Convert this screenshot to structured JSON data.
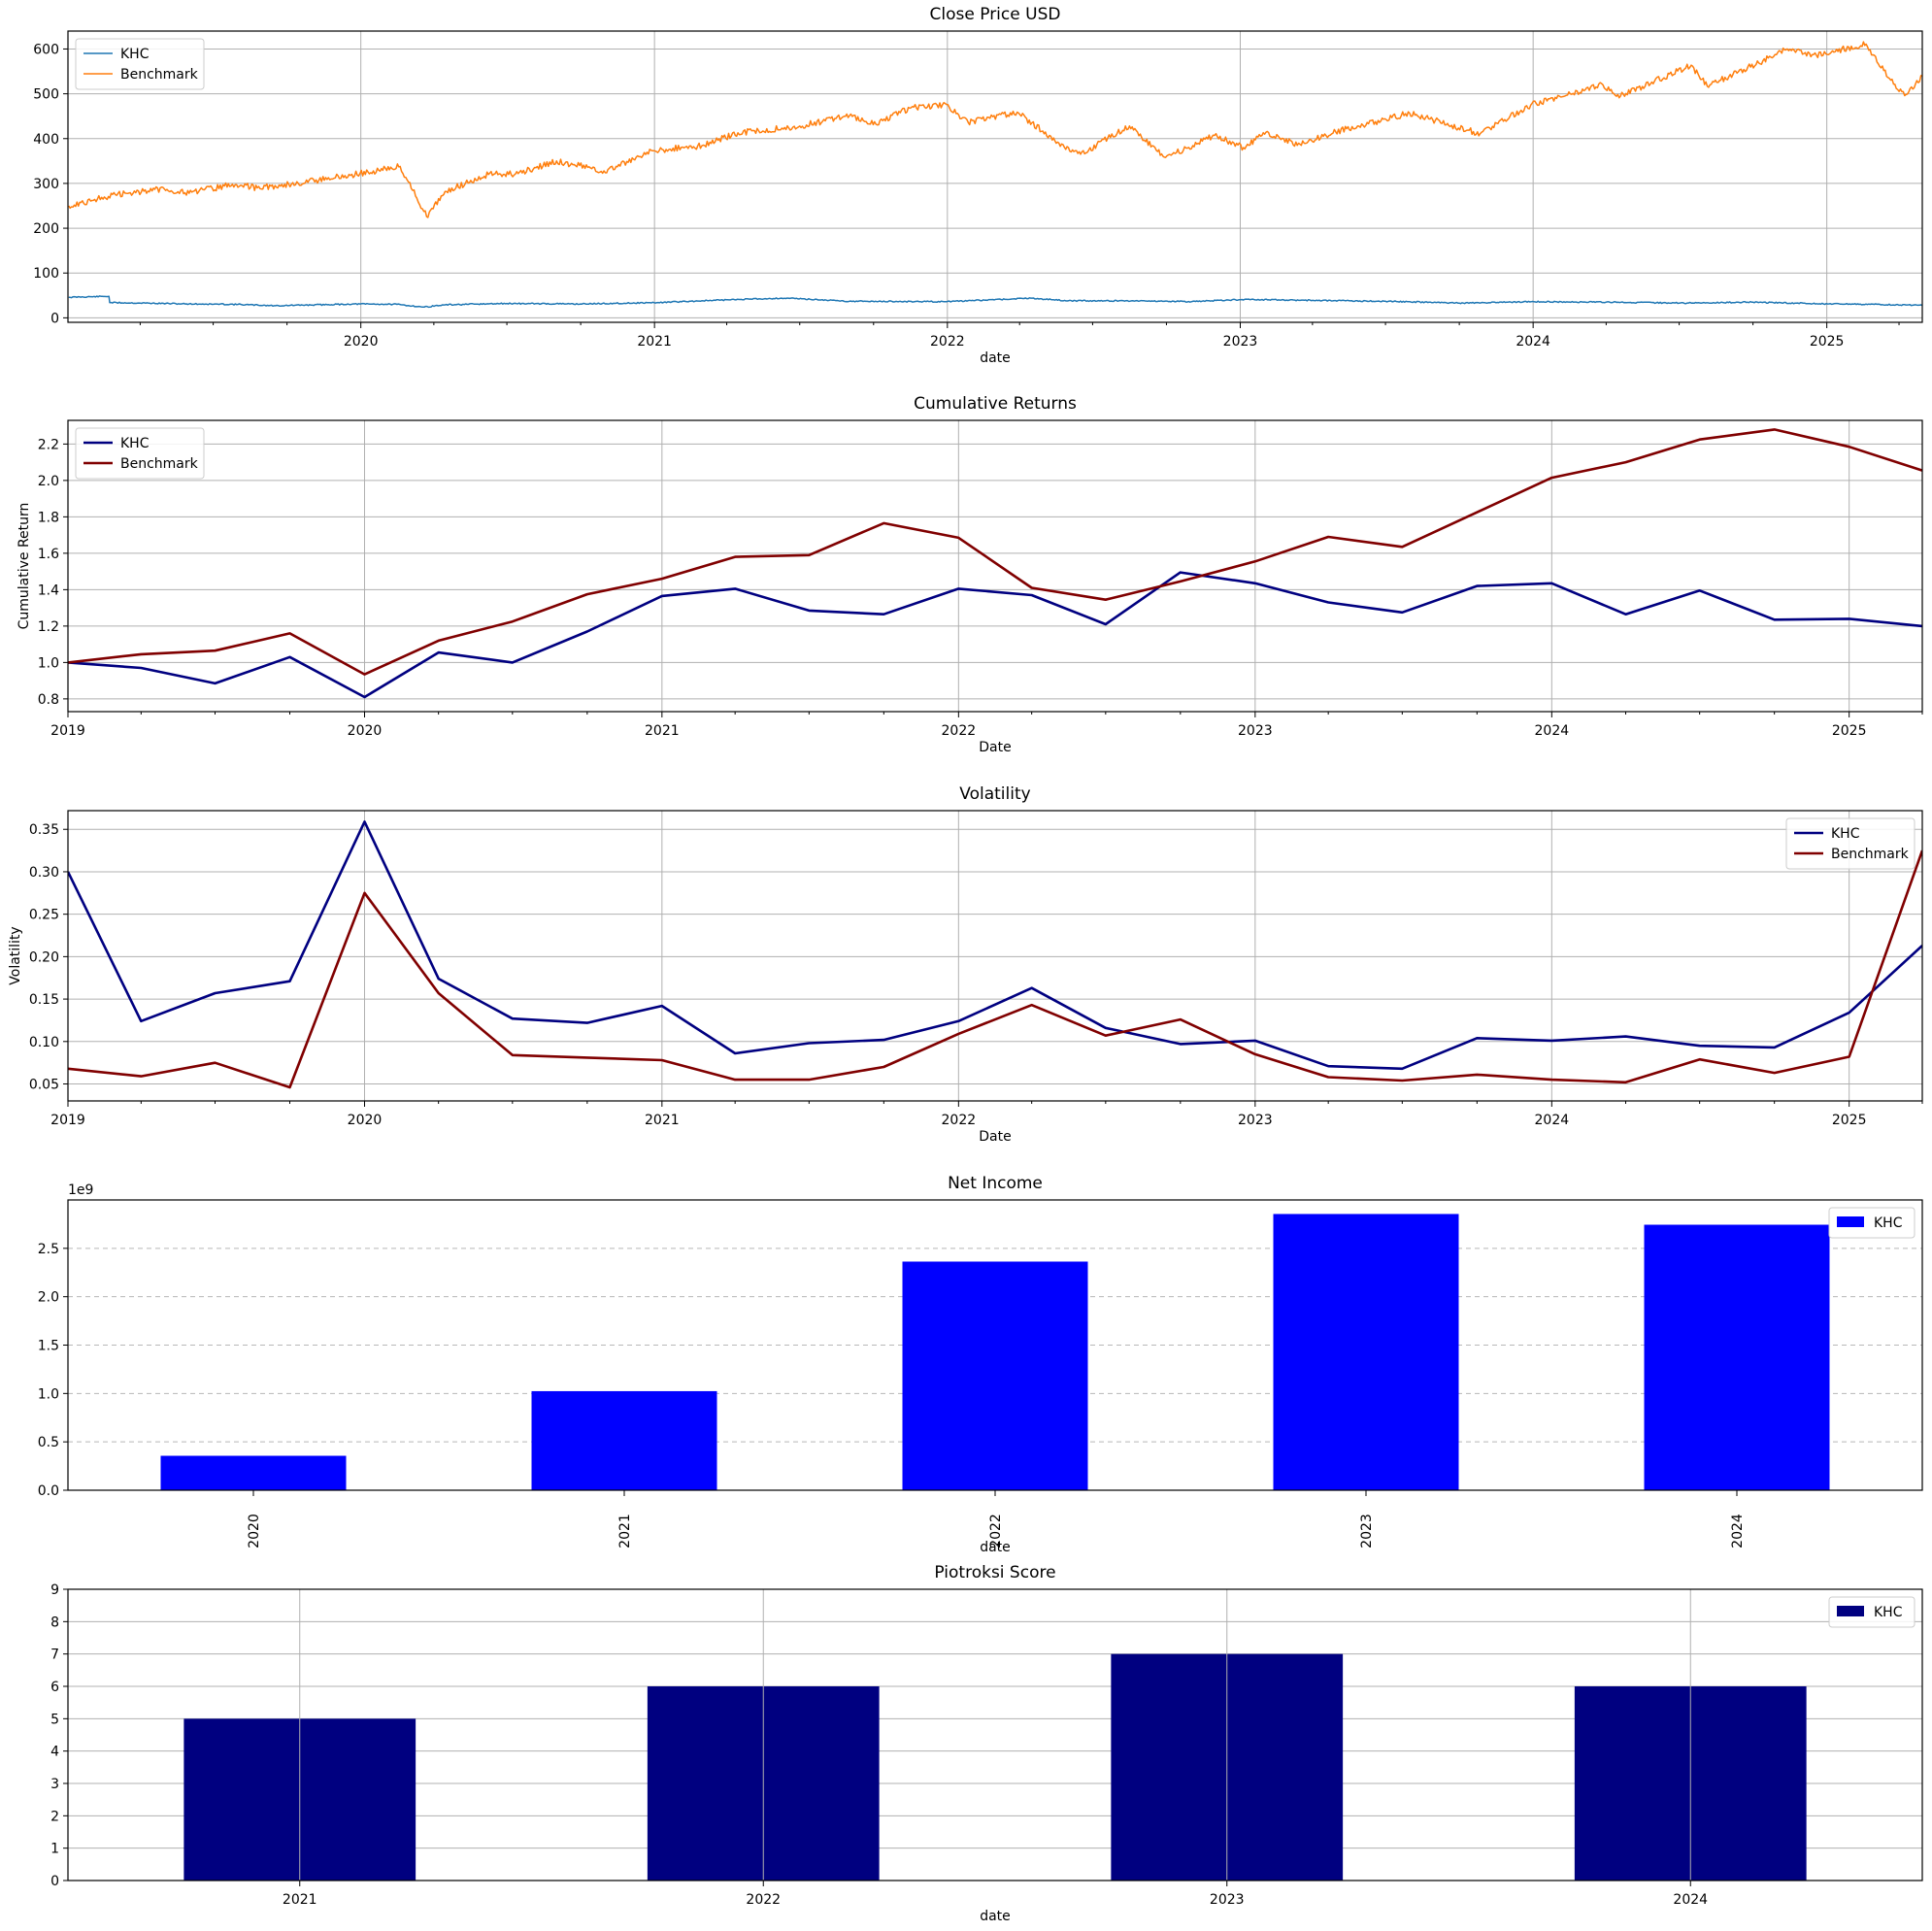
{
  "chart_data": [
    {
      "type": "line",
      "title": "Close Price USD",
      "xlabel": "date",
      "ylabel": "",
      "x_range": [
        "2019-01-01",
        "2025-04-30"
      ],
      "ylim": [
        -10,
        640
      ],
      "x_ticks": [
        "2020",
        "2021",
        "2022",
        "2023",
        "2024",
        "2025"
      ],
      "y_ticks": [
        "0",
        "100",
        "200",
        "300",
        "400",
        "500",
        "600"
      ],
      "grid": true,
      "legend": "top-left",
      "series": [
        {
          "name": "KHC",
          "color": "#1f77b4",
          "points": [
            [
              "2019-01-02",
              46
            ],
            [
              "2019-02-21",
              48
            ],
            [
              "2019-02-22",
              34
            ],
            [
              "2019-04-01",
              33
            ],
            [
              "2019-06-01",
              31
            ],
            [
              "2019-08-01",
              30
            ],
            [
              "2019-09-15",
              27
            ],
            [
              "2019-12-31",
              31
            ],
            [
              "2020-02-15",
              30
            ],
            [
              "2020-03-20",
              24
            ],
            [
              "2020-04-15",
              29
            ],
            [
              "2020-07-01",
              32
            ],
            [
              "2020-10-01",
              31
            ],
            [
              "2021-01-04",
              34
            ],
            [
              "2021-03-01",
              38
            ],
            [
              "2021-05-01",
              42
            ],
            [
              "2021-06-15",
              44
            ],
            [
              "2021-09-01",
              37
            ],
            [
              "2021-12-31",
              36
            ],
            [
              "2022-04-15",
              44
            ],
            [
              "2022-06-01",
              38
            ],
            [
              "2022-09-01",
              38
            ],
            [
              "2022-11-01",
              36
            ],
            [
              "2023-01-03",
              41
            ],
            [
              "2023-04-01",
              39
            ],
            [
              "2023-07-01",
              37
            ],
            [
              "2023-10-01",
              33
            ],
            [
              "2024-01-02",
              36
            ],
            [
              "2024-04-01",
              35
            ],
            [
              "2024-07-01",
              33
            ],
            [
              "2024-10-01",
              35
            ],
            [
              "2025-01-02",
              31
            ],
            [
              "2025-03-01",
              30
            ],
            [
              "2025-04-30",
              28
            ]
          ]
        },
        {
          "name": "Benchmark",
          "color": "#ff7f0e",
          "points": [
            [
              "2019-01-02",
              250
            ],
            [
              "2019-03-01",
              275
            ],
            [
              "2019-05-01",
              288
            ],
            [
              "2019-06-01",
              278
            ],
            [
              "2019-07-25",
              298
            ],
            [
              "2019-08-25",
              290
            ],
            [
              "2019-10-15",
              300
            ],
            [
              "2019-12-31",
              322
            ],
            [
              "2020-02-19",
              338
            ],
            [
              "2020-03-23",
              226
            ],
            [
              "2020-04-15",
              282
            ],
            [
              "2020-06-08",
              320
            ],
            [
              "2020-07-15",
              322
            ],
            [
              "2020-09-01",
              350
            ],
            [
              "2020-10-30",
              328
            ],
            [
              "2020-12-31",
              373
            ],
            [
              "2021-03-01",
              384
            ],
            [
              "2021-04-15",
              413
            ],
            [
              "2021-07-01",
              428
            ],
            [
              "2021-09-01",
              451
            ],
            [
              "2021-10-04",
              432
            ],
            [
              "2021-11-15",
              468
            ],
            [
              "2021-12-31",
              476
            ],
            [
              "2022-01-27",
              436
            ],
            [
              "2022-03-29",
              459
            ],
            [
              "2022-05-20",
              390
            ],
            [
              "2022-06-16",
              365
            ],
            [
              "2022-08-16",
              428
            ],
            [
              "2022-09-30",
              358
            ],
            [
              "2022-11-30",
              407
            ],
            [
              "2023-01-05",
              380
            ],
            [
              "2023-02-02",
              414
            ],
            [
              "2023-03-13",
              385
            ],
            [
              "2023-04-30",
              415
            ],
            [
              "2023-07-31",
              457
            ],
            [
              "2023-10-27",
              411
            ],
            [
              "2023-12-29",
              475
            ],
            [
              "2024-03-28",
              520
            ],
            [
              "2024-04-19",
              495
            ],
            [
              "2024-07-16",
              564
            ],
            [
              "2024-08-05",
              517
            ],
            [
              "2024-11-11",
              598
            ],
            [
              "2024-12-19",
              586
            ],
            [
              "2025-02-19",
              611
            ],
            [
              "2025-03-13",
              552
            ],
            [
              "2025-04-08",
              496
            ],
            [
              "2025-04-30",
              540
            ]
          ]
        }
      ]
    },
    {
      "type": "line",
      "title": "Cumulative Returns",
      "xlabel": "Date",
      "ylabel": "Cumulative Return",
      "x_range": [
        "2019-01-01",
        "2025-04-01"
      ],
      "ylim": [
        0.73,
        2.33
      ],
      "x_ticks": [
        "2019",
        "2020",
        "2021",
        "2022",
        "2023",
        "2024",
        "2025"
      ],
      "y_ticks": [
        "0.8",
        "1.0",
        "1.2",
        "1.4",
        "1.6",
        "1.8",
        "2.0",
        "2.2"
      ],
      "grid": true,
      "legend": "top-left",
      "series": [
        {
          "name": "KHC",
          "color": "#000080",
          "points": [
            [
              "2019-01-01",
              1.0
            ],
            [
              "2019-04-01",
              0.97
            ],
            [
              "2019-07-01",
              0.885
            ],
            [
              "2019-10-01",
              1.03
            ],
            [
              "2020-01-01",
              0.81
            ],
            [
              "2020-04-01",
              1.055
            ],
            [
              "2020-07-01",
              1.0
            ],
            [
              "2020-10-01",
              1.17
            ],
            [
              "2021-01-01",
              1.365
            ],
            [
              "2021-04-01",
              1.405
            ],
            [
              "2021-07-01",
              1.285
            ],
            [
              "2021-10-01",
              1.265
            ],
            [
              "2022-01-01",
              1.405
            ],
            [
              "2022-04-01",
              1.37
            ],
            [
              "2022-07-01",
              1.21
            ],
            [
              "2022-10-01",
              1.495
            ],
            [
              "2023-01-01",
              1.435
            ],
            [
              "2023-04-01",
              1.33
            ],
            [
              "2023-07-01",
              1.275
            ],
            [
              "2023-10-01",
              1.42
            ],
            [
              "2024-01-01",
              1.435
            ],
            [
              "2024-04-01",
              1.265
            ],
            [
              "2024-07-01",
              1.395
            ],
            [
              "2024-10-01",
              1.235
            ],
            [
              "2025-01-01",
              1.24
            ],
            [
              "2025-04-01",
              1.2
            ]
          ]
        },
        {
          "name": "Benchmark",
          "color": "#800000",
          "points": [
            [
              "2019-01-01",
              1.0
            ],
            [
              "2019-04-01",
              1.045
            ],
            [
              "2019-07-01",
              1.065
            ],
            [
              "2019-10-01",
              1.16
            ],
            [
              "2020-01-01",
              0.935
            ],
            [
              "2020-04-01",
              1.12
            ],
            [
              "2020-07-01",
              1.225
            ],
            [
              "2020-10-01",
              1.375
            ],
            [
              "2021-01-01",
              1.46
            ],
            [
              "2021-04-01",
              1.58
            ],
            [
              "2021-07-01",
              1.59
            ],
            [
              "2021-10-01",
              1.765
            ],
            [
              "2022-01-01",
              1.685
            ],
            [
              "2022-04-01",
              1.41
            ],
            [
              "2022-07-01",
              1.345
            ],
            [
              "2022-10-01",
              1.445
            ],
            [
              "2023-01-01",
              1.555
            ],
            [
              "2023-04-01",
              1.69
            ],
            [
              "2023-07-01",
              1.635
            ],
            [
              "2023-10-01",
              1.825
            ],
            [
              "2024-01-01",
              2.015
            ],
            [
              "2024-04-01",
              2.1
            ],
            [
              "2024-07-01",
              2.225
            ],
            [
              "2024-10-01",
              2.28
            ],
            [
              "2025-01-01",
              2.185
            ],
            [
              "2025-04-01",
              2.055
            ]
          ]
        }
      ]
    },
    {
      "type": "line",
      "title": "Volatility",
      "xlabel": "Date",
      "ylabel": "Volatility",
      "x_range": [
        "2019-01-01",
        "2025-04-01"
      ],
      "ylim": [
        0.03,
        0.372
      ],
      "x_ticks": [
        "2019",
        "2020",
        "2021",
        "2022",
        "2023",
        "2024",
        "2025"
      ],
      "y_ticks": [
        "0.05",
        "0.10",
        "0.15",
        "0.20",
        "0.25",
        "0.30",
        "0.35"
      ],
      "grid": true,
      "legend": "top-right",
      "series": [
        {
          "name": "KHC",
          "color": "#000080",
          "points": [
            [
              "2019-01-01",
              0.3
            ],
            [
              "2019-04-01",
              0.124
            ],
            [
              "2019-07-01",
              0.157
            ],
            [
              "2019-10-01",
              0.171
            ],
            [
              "2020-01-01",
              0.359
            ],
            [
              "2020-04-01",
              0.174
            ],
            [
              "2020-07-01",
              0.127
            ],
            [
              "2020-10-01",
              0.122
            ],
            [
              "2021-01-01",
              0.142
            ],
            [
              "2021-04-01",
              0.086
            ],
            [
              "2021-07-01",
              0.098
            ],
            [
              "2021-10-01",
              0.102
            ],
            [
              "2022-01-01",
              0.124
            ],
            [
              "2022-04-01",
              0.163
            ],
            [
              "2022-07-01",
              0.116
            ],
            [
              "2022-10-01",
              0.097
            ],
            [
              "2023-01-01",
              0.101
            ],
            [
              "2023-04-01",
              0.071
            ],
            [
              "2023-07-01",
              0.068
            ],
            [
              "2023-10-01",
              0.104
            ],
            [
              "2024-01-01",
              0.101
            ],
            [
              "2024-04-01",
              0.106
            ],
            [
              "2024-07-01",
              0.095
            ],
            [
              "2024-10-01",
              0.093
            ],
            [
              "2025-01-01",
              0.134
            ],
            [
              "2025-04-01",
              0.213
            ]
          ]
        },
        {
          "name": "Benchmark",
          "color": "#800000",
          "points": [
            [
              "2019-01-01",
              0.068
            ],
            [
              "2019-04-01",
              0.059
            ],
            [
              "2019-07-01",
              0.075
            ],
            [
              "2019-10-01",
              0.046
            ],
            [
              "2020-01-01",
              0.275
            ],
            [
              "2020-04-01",
              0.157
            ],
            [
              "2020-07-01",
              0.084
            ],
            [
              "2020-10-01",
              0.081
            ],
            [
              "2021-01-01",
              0.078
            ],
            [
              "2021-04-01",
              0.055
            ],
            [
              "2021-07-01",
              0.055
            ],
            [
              "2021-10-01",
              0.07
            ],
            [
              "2022-01-01",
              0.109
            ],
            [
              "2022-04-01",
              0.143
            ],
            [
              "2022-07-01",
              0.107
            ],
            [
              "2022-10-01",
              0.126
            ],
            [
              "2023-01-01",
              0.085
            ],
            [
              "2023-04-01",
              0.058
            ],
            [
              "2023-07-01",
              0.054
            ],
            [
              "2023-10-01",
              0.061
            ],
            [
              "2024-01-01",
              0.055
            ],
            [
              "2024-04-01",
              0.052
            ],
            [
              "2024-07-01",
              0.079
            ],
            [
              "2024-10-01",
              0.063
            ],
            [
              "2025-01-01",
              0.082
            ],
            [
              "2025-04-01",
              0.325
            ]
          ]
        }
      ]
    },
    {
      "type": "bar",
      "title": "Net Income",
      "xlabel": "date",
      "ylabel": "",
      "offset_text": "1e9",
      "categories": [
        "2020",
        "2021",
        "2022",
        "2023",
        "2024"
      ],
      "series": [
        {
          "name": "KHC",
          "color": "#0000ff",
          "values": [
            356000000,
            1024000000,
            2363000000,
            2855000000,
            2744000000
          ]
        }
      ],
      "ylim": [
        0,
        3000000000
      ],
      "y_ticks": [
        "0.0",
        "0.5",
        "1.0",
        "1.5",
        "2.0",
        "2.5"
      ],
      "grid": "horizontal-dashed",
      "legend": "top-right",
      "tick_rotation": 90
    },
    {
      "type": "bar",
      "title": "Piotroksi Score",
      "xlabel": "date",
      "ylabel": "",
      "categories": [
        "2021",
        "2022",
        "2023",
        "2024"
      ],
      "series": [
        {
          "name": "KHC",
          "color": "#000080",
          "values": [
            5,
            6,
            7,
            6
          ]
        }
      ],
      "ylim": [
        0,
        9
      ],
      "y_ticks": [
        "0",
        "1",
        "2",
        "3",
        "4",
        "5",
        "6",
        "7",
        "8",
        "9"
      ],
      "grid": true,
      "legend": "top-right"
    }
  ]
}
